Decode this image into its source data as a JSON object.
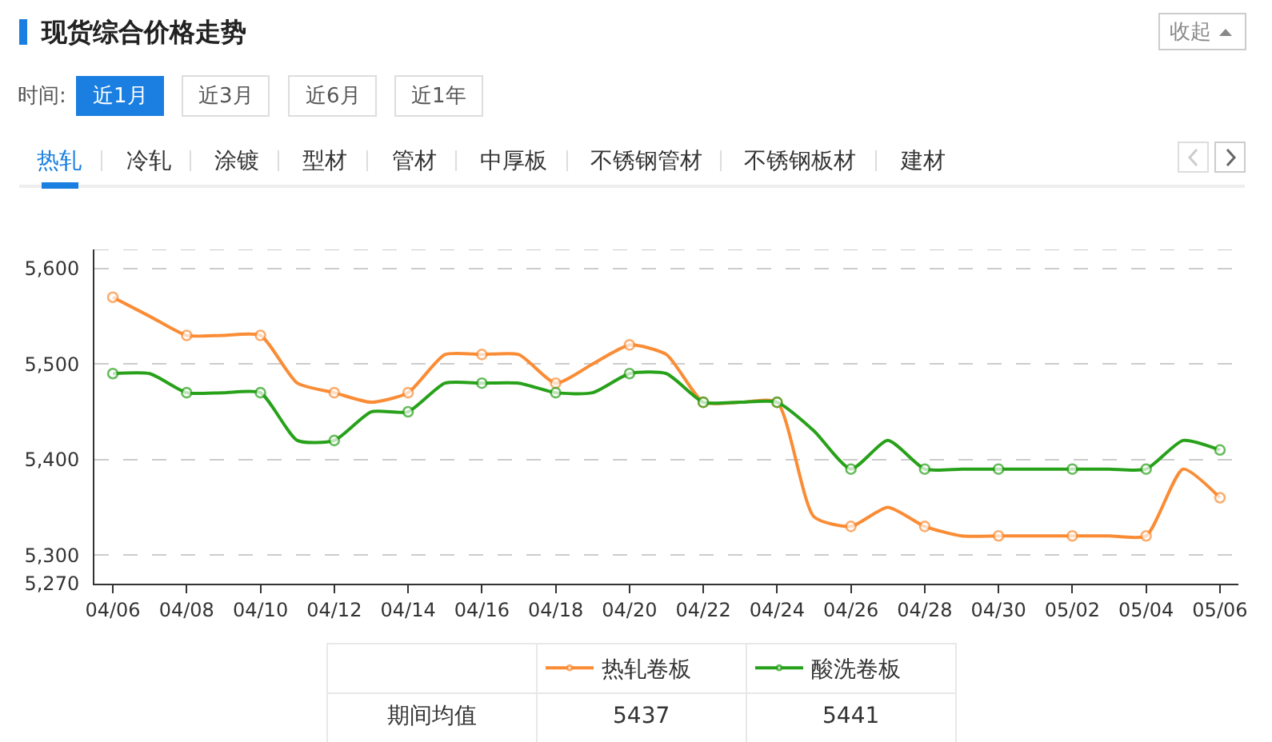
{
  "chart_data": {
    "type": "line",
    "title": "现货综合价格走势",
    "annotations": [
      "收起",
      "时间:",
      "近1月",
      "近3月",
      "近6月",
      "近1年",
      "热轧",
      "冷轧",
      "涂镀",
      "型材",
      "管材",
      "中厚板",
      "不锈钢管材",
      "不锈钢板材",
      "建材",
      "期间均值",
      "5437",
      "5441"
    ],
    "categories": [
      "04/06",
      null,
      "04/08",
      null,
      "04/10",
      null,
      "04/12",
      null,
      "04/14",
      null,
      "04/16",
      null,
      "04/18",
      null,
      "04/20",
      null,
      "04/22",
      null,
      "04/24",
      null,
      "04/26",
      null,
      "04/28",
      null,
      "04/30",
      null,
      "05/02",
      null,
      "05/04",
      null,
      "05/06"
    ],
    "series": [
      {
        "name": "热轧卷板",
        "color": "#fa8c35",
        "values": [
          5570,
          5550,
          5530,
          5530,
          5530,
          5480,
          5470,
          5460,
          5470,
          5510,
          5510,
          5510,
          5480,
          5500,
          5520,
          5510,
          5460,
          5460,
          5460,
          5340,
          5330,
          5350,
          5330,
          5320,
          5320,
          5320,
          5320,
          5320,
          5320,
          5390,
          5360
        ]
      },
      {
        "name": "酸洗卷板",
        "color": "#28a11a",
        "values": [
          5490,
          5490,
          5470,
          5470,
          5470,
          5420,
          5420,
          5450,
          5450,
          5480,
          5480,
          5480,
          5470,
          5470,
          5490,
          5490,
          5460,
          5460,
          5460,
          5430,
          5390,
          5420,
          5390,
          5390,
          5390,
          5390,
          5390,
          5390,
          5390,
          5420,
          5410
        ]
      }
    ],
    "ylim": [
      5270,
      5620
    ],
    "yticks": [
      {
        "value": 5270,
        "label": "5,270"
      },
      {
        "value": 5300,
        "label": "5,300"
      },
      {
        "value": 5400,
        "label": "5,400"
      },
      {
        "value": 5500,
        "label": "5,500"
      },
      {
        "value": 5600,
        "label": "5,600"
      },
      {
        "value": 5620,
        "label": null
      }
    ],
    "grid": "y",
    "legend": "bottom",
    "marker": "circle",
    "line_style": "solid"
  }
}
